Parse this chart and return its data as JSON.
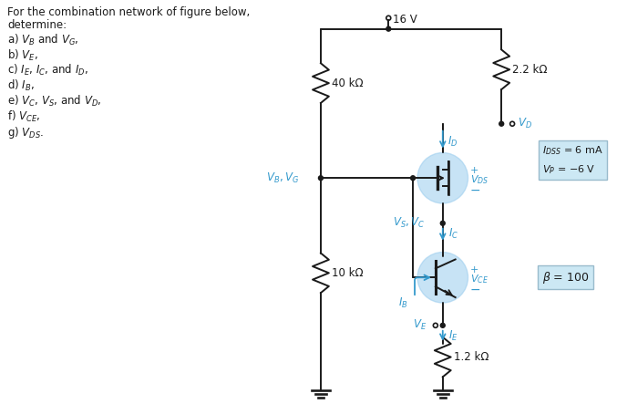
{
  "bg_color": "#ffffff",
  "text_color_black": "#1a1a1a",
  "text_color_blue": "#3399cc",
  "title_lines": [
    "For the combination network of figure below,",
    "determine:"
  ],
  "items": [
    "a) $V_B$ and $V_G$,",
    "b) $V_E$,",
    "c) $I_E$, $I_C$, and $I_D$,",
    "d) $I_B$,",
    "e) $V_C$, $V_S$, and $V_D$,",
    "f) $V_{CE}$,",
    "g) $V_{DS}$."
  ],
  "vcc": "16 V",
  "r1_label": "40 kΩ",
  "r2_label": "10 kΩ",
  "rd_label": "2.2 kΩ",
  "re_label": "1.2 kΩ",
  "idss_label": "$I_{DSS}$ = 6 mA",
  "vp_label": "$V_P$ = −6 V",
  "beta_label": "$\\beta$ = 100",
  "vb_vg_label": "$V_B, V_G$",
  "vd_label": "$V_D$",
  "vs_vc_label": "$V_S, V_C$",
  "ve_label": "$V_E$",
  "id_label": "$I_D$",
  "ic_label": "$I_C$",
  "ie_label": "$I_E$",
  "ib_label": "$I_B$",
  "vds_label": "$V_{DS}$",
  "vce_label": "$V_{CE}$",
  "plus": "+",
  "minus": "−",
  "circle_color": "#99ccee",
  "circle_alpha": 0.55,
  "box_face": "#cce8f4",
  "box_edge": "#99bbcc"
}
